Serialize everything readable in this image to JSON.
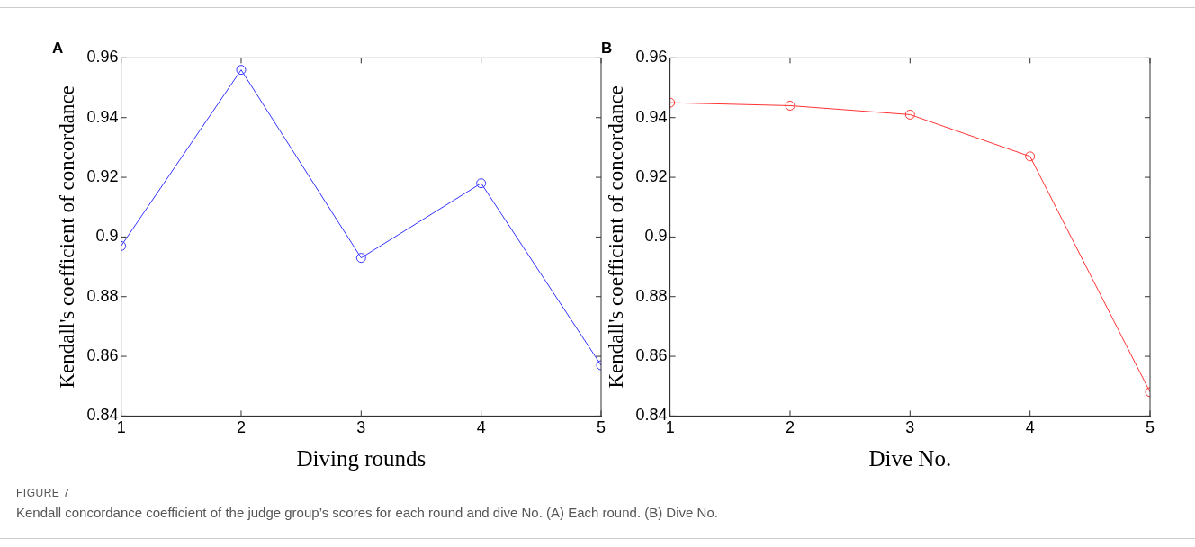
{
  "chart_data": [
    {
      "type": "line",
      "title": "A",
      "xlabel": "Diving rounds",
      "ylabel": "Kendall's coefficient of concordance",
      "x": [
        1,
        2,
        3,
        4,
        5
      ],
      "xlim": [
        1,
        5
      ],
      "xticks": [
        1,
        2,
        3,
        4,
        5
      ],
      "ylim": [
        0.84,
        0.96
      ],
      "yticks": [
        0.84,
        0.86,
        0.88,
        0.9,
        0.92,
        0.94,
        0.96
      ],
      "marker": "circle",
      "series": [
        {
          "color": "#3333ff",
          "values": [
            0.897,
            0.956,
            0.893,
            0.918,
            0.857
          ]
        }
      ],
      "annotations": [
        "FIGURE 7",
        "Kendall concordance coefficient of the judge group’s scores for each round and dive No. (A) Each round. (B) Dive No."
      ]
    },
    {
      "type": "line",
      "title": "B",
      "xlabel": "Dive No.",
      "ylabel": "Kendall's coefficient of concordance",
      "x": [
        1,
        2,
        3,
        4,
        5
      ],
      "xlim": [
        1,
        5
      ],
      "xticks": [
        1,
        2,
        3,
        4,
        5
      ],
      "ylim": [
        0.84,
        0.96
      ],
      "yticks": [
        0.84,
        0.86,
        0.88,
        0.9,
        0.92,
        0.94,
        0.96
      ],
      "marker": "circle",
      "series": [
        {
          "color": "#ff3333",
          "values": [
            0.945,
            0.944,
            0.941,
            0.927,
            0.848
          ]
        }
      ]
    }
  ]
}
